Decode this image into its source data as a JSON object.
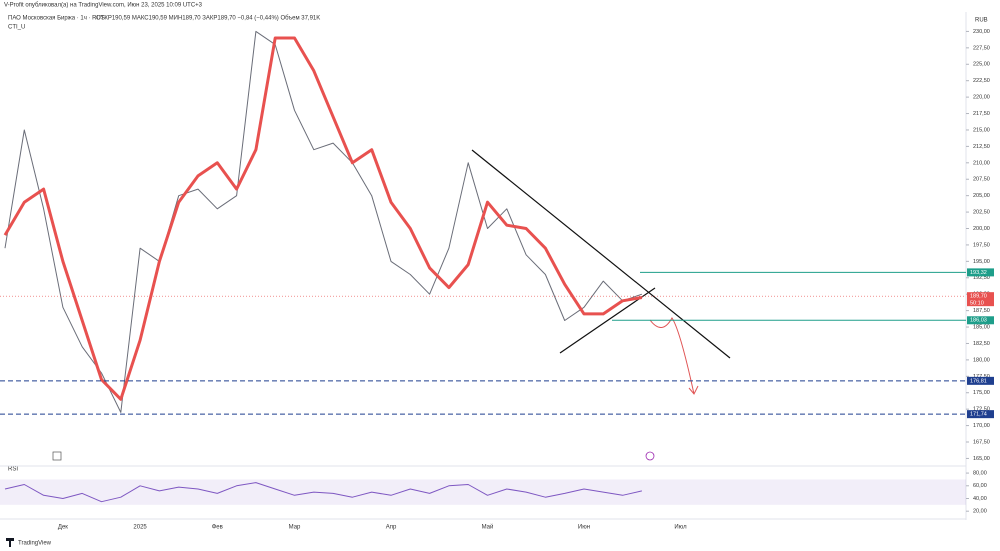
{
  "header": {
    "published": "V-Profit опубликовал(а) на TradingView.com, Июн 23, 2025 10:09 UTC+3",
    "symbol": "ПАО Московская Биржа · 1ч · RUS",
    "ohlc": "ОТКР190,59 МАКС190,59 МИН189,70 ЗАКР189,70 −0,84 (−0,44%) Объем 37,91K",
    "indicator": "CTI_U",
    "currency": "RUB",
    "footer": "TradingView"
  },
  "chart_data": [
    {
      "type": "line",
      "title": "ПАО Московская Биржа · 1ч · RUS",
      "categories": [
        null,
        null,
        null,
        "Дек",
        null,
        null,
        null,
        "2025",
        null,
        null,
        null,
        "Фев",
        null,
        null,
        null,
        "Мар",
        null,
        null,
        null,
        null,
        "Апр",
        null,
        null,
        null,
        null,
        "Май",
        null,
        null,
        null,
        null,
        "Июн",
        null,
        null,
        null,
        null,
        "Июл",
        null,
        null,
        null,
        null
      ],
      "series": [
        {
          "name": "ПАО Московская Биржа",
          "color": "#6a6d78",
          "values": [
            197,
            215,
            203,
            188,
            182,
            178,
            172,
            197,
            195,
            205,
            206,
            203,
            205,
            230,
            228,
            218,
            212,
            213,
            210,
            205,
            195,
            193,
            190,
            197,
            210,
            200,
            203,
            196,
            193,
            186,
            188,
            192,
            189,
            190,
            null,
            null,
            null,
            null,
            null,
            null
          ]
        },
        {
          "name": "CTI_U",
          "color": "#e8514f",
          "values": [
            199,
            204,
            206,
            195,
            186,
            177,
            174,
            183,
            195,
            204,
            208,
            210,
            206,
            212,
            229,
            229,
            224,
            217,
            210,
            212,
            204,
            200,
            194,
            191,
            194.5,
            204,
            200.5,
            200,
            197,
            191.5,
            187,
            187,
            189,
            189.5,
            null,
            null,
            null,
            null,
            null,
            null
          ]
        }
      ],
      "ylim": [
        164,
        232.5
      ],
      "yticks": [
        {
          "value": 165,
          "label": "165,00"
        },
        {
          "value": 167.5,
          "label": "167,50"
        },
        {
          "value": 170,
          "label": "170,00"
        },
        {
          "value": 172.5,
          "label": "172,50"
        },
        {
          "value": 175,
          "label": "175,00"
        },
        {
          "value": 177.5,
          "label": "177,50"
        },
        {
          "value": 180,
          "label": "180,00"
        },
        {
          "value": 182.5,
          "label": "182,50"
        },
        {
          "value": 185,
          "label": "185,00"
        },
        {
          "value": 187.5,
          "label": "187,50"
        },
        {
          "value": 190,
          "label": "190,00"
        },
        {
          "value": 192.5,
          "label": "192,50"
        },
        {
          "value": 195,
          "label": "195,00"
        },
        {
          "value": 197.5,
          "label": "197,50"
        },
        {
          "value": 200,
          "label": "200,00"
        },
        {
          "value": 202.5,
          "label": "202,50"
        },
        {
          "value": 205,
          "label": "205,00"
        },
        {
          "value": 207.5,
          "label": "207,50"
        },
        {
          "value": 210,
          "label": "210,00"
        },
        {
          "value": 212.5,
          "label": "212,50"
        },
        {
          "value": 215,
          "label": "215,00"
        },
        {
          "value": 217.5,
          "label": "217,50"
        },
        {
          "value": 220,
          "label": "220,00"
        },
        {
          "value": 222.5,
          "label": "222,50"
        },
        {
          "value": 225,
          "label": "225,00"
        },
        {
          "value": 227.5,
          "label": "227,50"
        },
        {
          "value": 230,
          "label": "230,00"
        }
      ],
      "levels": [
        {
          "value": 193.32,
          "label": "193,32",
          "color": "#1e9e8a",
          "style": "solid"
        },
        {
          "value": 186.03,
          "label": "186,03",
          "color": "#1e9e8a",
          "style": "solid"
        },
        {
          "value": 176.81,
          "label": "176,81",
          "color": "#1f3f8f",
          "style": "dashed"
        },
        {
          "value": 171.74,
          "label": "171,74",
          "color": "#1f3f8f",
          "style": "dashed"
        }
      ],
      "current_price": {
        "value": 189.7,
        "label": "189,70",
        "countdown": "50:10",
        "color": "#e8514f"
      }
    },
    {
      "type": "line",
      "title": "RSI",
      "series": [
        {
          "name": "RSI",
          "color": "#7e57c2",
          "values": [
            55,
            62,
            45,
            40,
            48,
            35,
            42,
            60,
            52,
            58,
            55,
            48,
            60,
            65,
            55,
            45,
            50,
            48,
            42,
            50,
            45,
            55,
            48,
            60,
            62,
            45,
            55,
            50,
            42,
            48,
            55,
            50,
            45,
            52,
            null,
            null,
            null,
            null,
            null,
            null
          ]
        }
      ],
      "ylim": [
        14,
        88
      ],
      "band": [
        30,
        70
      ],
      "yticks": [
        {
          "value": 20,
          "label": "20,00"
        },
        {
          "value": 40,
          "label": "40,00"
        },
        {
          "value": 60,
          "label": "60,00"
        },
        {
          "value": 80,
          "label": "80,00"
        }
      ]
    }
  ]
}
